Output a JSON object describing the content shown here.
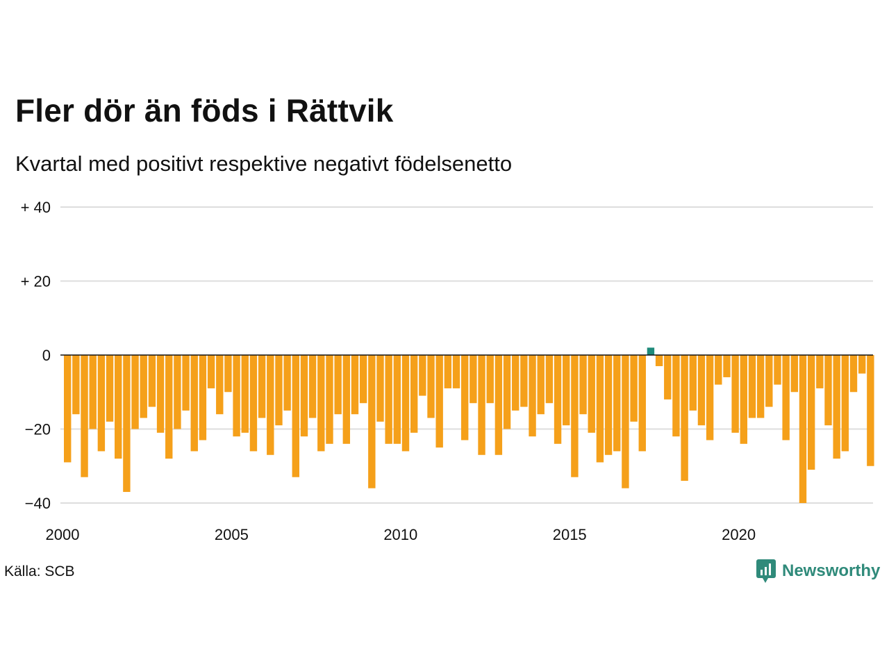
{
  "title": "Fler dör än föds i Rättvik",
  "subtitle": "Kvartal med positivt respektive negativt födelsenetto",
  "source": "Källa: SCB",
  "logo_text": "Newsworthy",
  "colors": {
    "negative": "#f5a01a",
    "positive": "#1e8a7a",
    "grid": "#dddddd",
    "zero_line": "#111111",
    "logo": "#2f8a7a"
  },
  "chart_data": {
    "type": "bar",
    "title": "Fler dör än föds i Rättvik",
    "subtitle": "Kvartal med positivt respektive negativt födelsenetto",
    "xlabel": "",
    "ylabel": "",
    "ylim": [
      -40,
      40
    ],
    "grid": true,
    "y_ticks": [
      40,
      20,
      0,
      -20,
      -40
    ],
    "y_tick_labels": [
      "+ 40",
      "+ 20",
      "0",
      "−20",
      "−40"
    ],
    "x_ticks": [
      2000,
      2005,
      2010,
      2015,
      2020
    ],
    "x_tick_labels": [
      "2000",
      "2005",
      "2010",
      "2015",
      "2020"
    ],
    "x_start_year": 2000,
    "periods_per_year": 4,
    "values": [
      -29,
      -16,
      -33,
      -20,
      -26,
      -18,
      -28,
      -37,
      -20,
      -17,
      -14,
      -21,
      -28,
      -20,
      -15,
      -26,
      -23,
      -9,
      -16,
      -10,
      -22,
      -21,
      -26,
      -17,
      -27,
      -19,
      -15,
      -33,
      -22,
      -17,
      -26,
      -24,
      -16,
      -24,
      -16,
      -13,
      -36,
      -18,
      -24,
      -24,
      -26,
      -21,
      -11,
      -17,
      -25,
      -9,
      -9,
      -23,
      -13,
      -27,
      -13,
      -27,
      -20,
      -15,
      -14,
      -22,
      -16,
      -13,
      -24,
      -19,
      -33,
      -16,
      -21,
      -29,
      -27,
      -26,
      -36,
      -18,
      -26,
      2,
      -3,
      -12,
      -22,
      -34,
      -15,
      -19,
      -23,
      -8,
      -6,
      -21,
      -24,
      -17,
      -17,
      -14,
      -8,
      -23,
      -10,
      -40,
      -31,
      -9,
      -19,
      -28,
      -26,
      -10,
      -5,
      -30
    ]
  }
}
